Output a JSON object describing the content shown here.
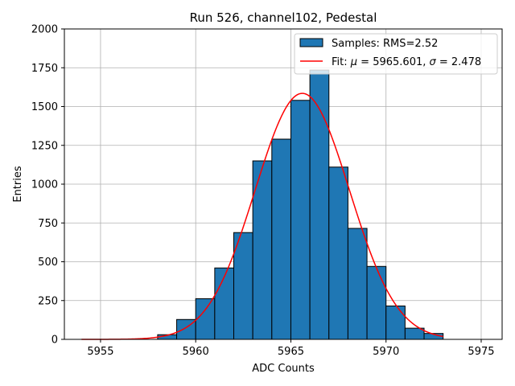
{
  "chart_data": {
    "type": "bar",
    "title": "Run 526, channel102, Pedestal",
    "xlabel": "ADC Counts",
    "ylabel": "Entries",
    "xlim": [
      5953.1,
      5976.1
    ],
    "ylim": [
      0,
      2000
    ],
    "xticks": [
      5955,
      5960,
      5965,
      5970,
      5975
    ],
    "yticks": [
      0,
      250,
      500,
      750,
      1000,
      1250,
      1500,
      1750,
      2000
    ],
    "grid": true,
    "legend_position": "top-right",
    "bar_color": "#1f77b4",
    "fit_color": "#ff0000",
    "bins": [
      {
        "left": 5958,
        "right": 5959,
        "value": 30
      },
      {
        "left": 5959,
        "right": 5960,
        "value": 128
      },
      {
        "left": 5960,
        "right": 5961,
        "value": 262
      },
      {
        "left": 5961,
        "right": 5962,
        "value": 460
      },
      {
        "left": 5962,
        "right": 5963,
        "value": 688
      },
      {
        "left": 5963,
        "right": 5964,
        "value": 1150
      },
      {
        "left": 5964,
        "right": 5965,
        "value": 1290
      },
      {
        "left": 5965,
        "right": 5966,
        "value": 1540
      },
      {
        "left": 5966,
        "right": 5967,
        "value": 1735
      },
      {
        "left": 5967,
        "right": 5968,
        "value": 1110
      },
      {
        "left": 5968,
        "right": 5969,
        "value": 715
      },
      {
        "left": 5969,
        "right": 5970,
        "value": 470
      },
      {
        "left": 5970,
        "right": 5971,
        "value": 215
      },
      {
        "left": 5971,
        "right": 5972,
        "value": 72
      },
      {
        "left": 5972,
        "right": 5973,
        "value": 38
      }
    ],
    "fit": {
      "mu": 5965.601,
      "sigma": 2.478,
      "amplitude": 1585,
      "x_range": [
        5954,
        5973
      ]
    },
    "legend": [
      {
        "type": "patch",
        "label": "Samples: RMS=2.52"
      },
      {
        "type": "line",
        "label_prefix": "Fit: ",
        "mu_symbol": "μ",
        "mu_text": " = 5965.601, ",
        "sigma_symbol": "σ",
        "sigma_text": " = 2.478"
      }
    ]
  }
}
